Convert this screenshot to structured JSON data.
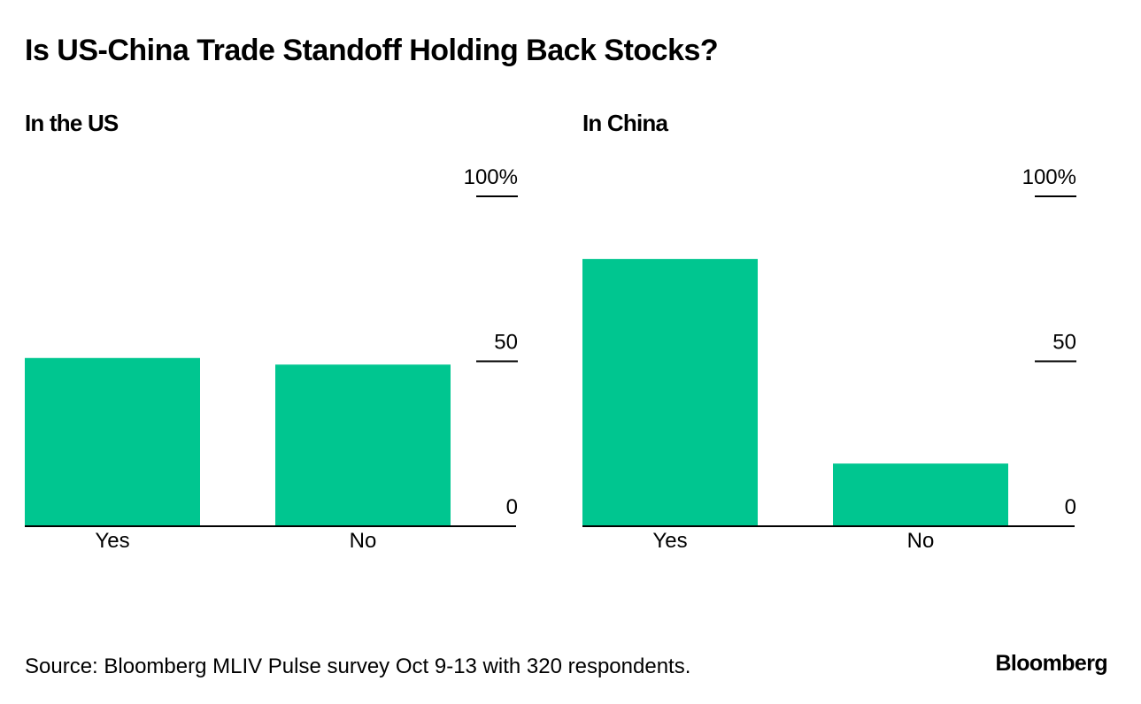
{
  "title": "Is US-China Trade Standoff Holding Back Stocks?",
  "colors": {
    "bar": "#00c690",
    "axis": "#000000",
    "background": "#ffffff"
  },
  "chart_data": [
    {
      "type": "bar",
      "title": "In the US",
      "categories": [
        "Yes",
        "No"
      ],
      "values": [
        51,
        49
      ],
      "ylim": [
        0,
        100
      ],
      "yticks": [
        0,
        50,
        100
      ],
      "ytick_labels": [
        "0",
        "50",
        "100%"
      ],
      "xlabel": "",
      "ylabel": ""
    },
    {
      "type": "bar",
      "title": "In China",
      "categories": [
        "Yes",
        "No"
      ],
      "values": [
        81,
        19
      ],
      "ylim": [
        0,
        100
      ],
      "yticks": [
        0,
        50,
        100
      ],
      "ytick_labels": [
        "0",
        "50",
        "100%"
      ],
      "xlabel": "",
      "ylabel": ""
    }
  ],
  "footer": {
    "source": "Source: Bloomberg MLIV Pulse survey Oct 9-13 with 320 respondents.",
    "brand": "Bloomberg"
  }
}
